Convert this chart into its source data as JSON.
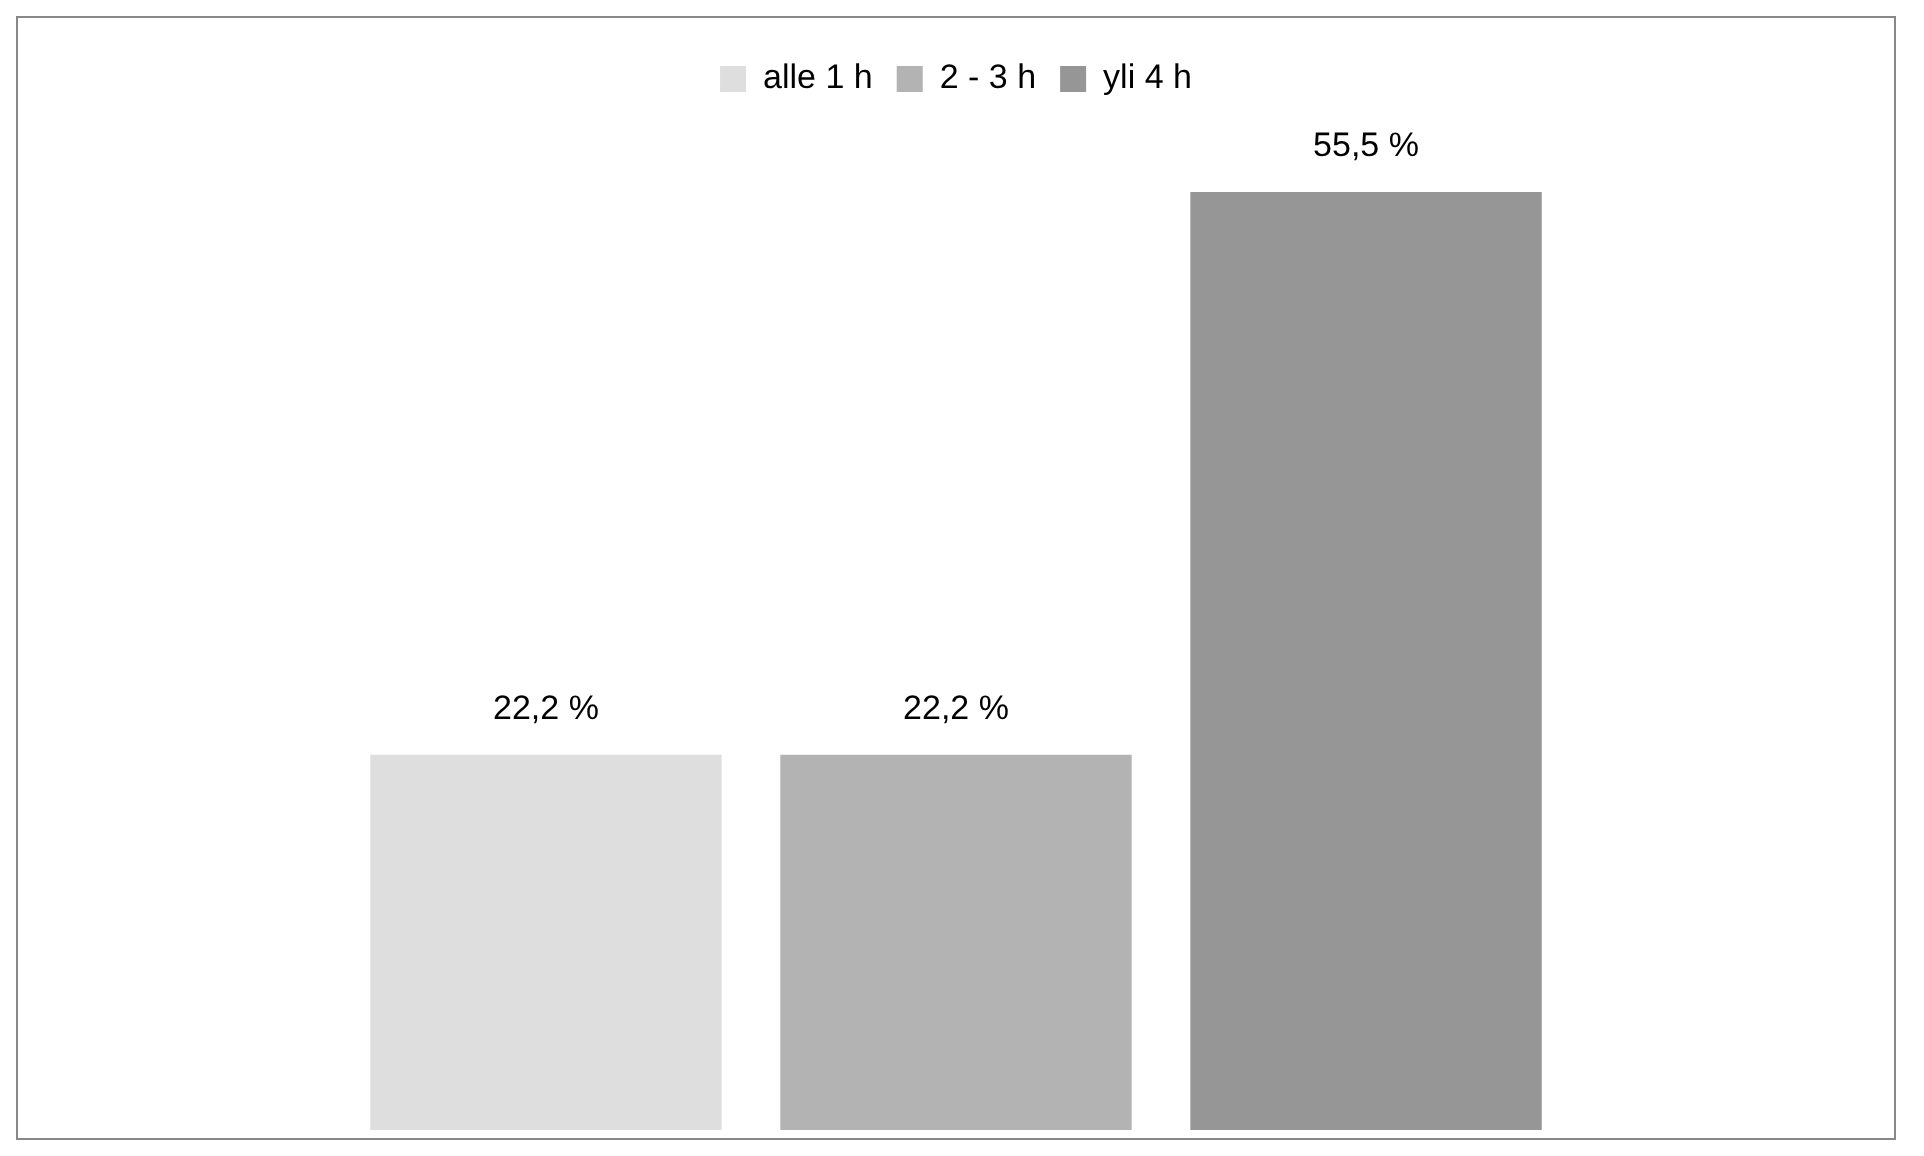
{
  "chart_data": {
    "type": "bar",
    "categories": [
      null
    ],
    "legend": "top",
    "tick_labels": false,
    "series": [
      {
        "name": "alle 1 h",
        "color": "#dedede",
        "values": [
          22.2
        ],
        "value_labels": [
          "22,2 %"
        ]
      },
      {
        "name": "2 - 3 h",
        "color": "#b3b3b3",
        "values": [
          22.2
        ],
        "value_labels": [
          "22,2 %"
        ]
      },
      {
        "name": "yli 4 h",
        "color": "#969696",
        "values": [
          55.5
        ],
        "value_labels": [
          "55,5 %"
        ]
      }
    ]
  }
}
